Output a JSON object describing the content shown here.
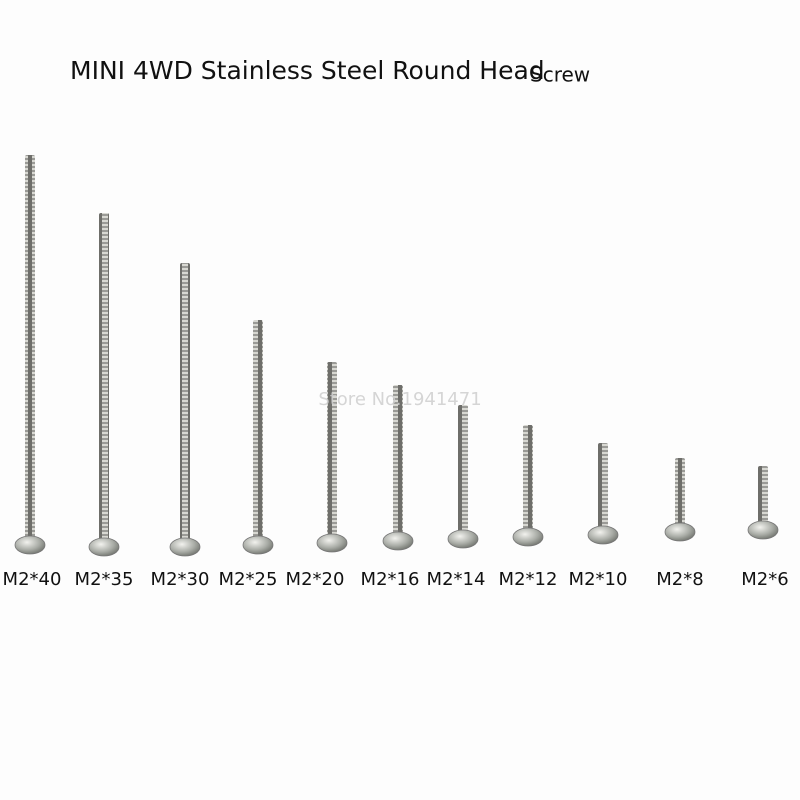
{
  "header": {
    "title": "MINI 4WD Stainless Steel Round Head",
    "title_suffix": "Screw"
  },
  "watermark": "Store No.1941471",
  "screws": [
    {
      "label": "M2*40"
    },
    {
      "label": "M2*35"
    },
    {
      "label": "M2*30"
    },
    {
      "label": "M2*25"
    },
    {
      "label": "M2*20"
    },
    {
      "label": "M2*16"
    },
    {
      "label": "M2*14"
    },
    {
      "label": "M2*12"
    },
    {
      "label": "M2*10"
    },
    {
      "label": "M2*8"
    },
    {
      "label": "M2*6"
    }
  ]
}
